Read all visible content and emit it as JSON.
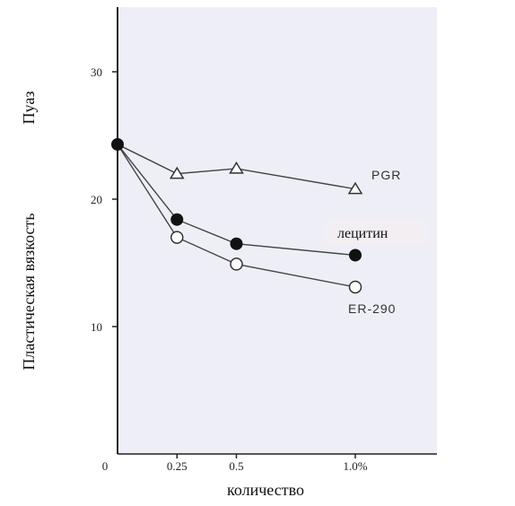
{
  "chart_data": {
    "type": "line",
    "x": [
      0,
      0.25,
      0.5,
      1.0
    ],
    "x_tick_labels": [
      "0",
      "0.25",
      "0.5",
      "1.0%"
    ],
    "y_ticks": [
      10,
      20,
      30
    ],
    "y_tick_labels": [
      "10",
      "20",
      "30"
    ],
    "xlabel": "количество",
    "ylabel": "Пластическая вязкость",
    "yunit": "Пуаз",
    "xlim": [
      0,
      1.3
    ],
    "ylim": [
      0,
      35
    ],
    "grid": false,
    "legend": "labels next to series (right)",
    "series": [
      {
        "name": "PGR",
        "marker": "triangle-open",
        "values": [
          24.3,
          22.0,
          22.4,
          20.8
        ]
      },
      {
        "name": "лецитин",
        "marker": "circle-filled",
        "values": [
          24.3,
          18.4,
          16.5,
          15.6
        ]
      },
      {
        "name": "ER-290",
        "marker": "circle-open",
        "values": [
          24.3,
          17.0,
          14.9,
          13.1
        ]
      }
    ]
  },
  "colors": {
    "plot_background": "#eeeff6",
    "line": "#444444",
    "label_highlight": "#f2eef2"
  }
}
